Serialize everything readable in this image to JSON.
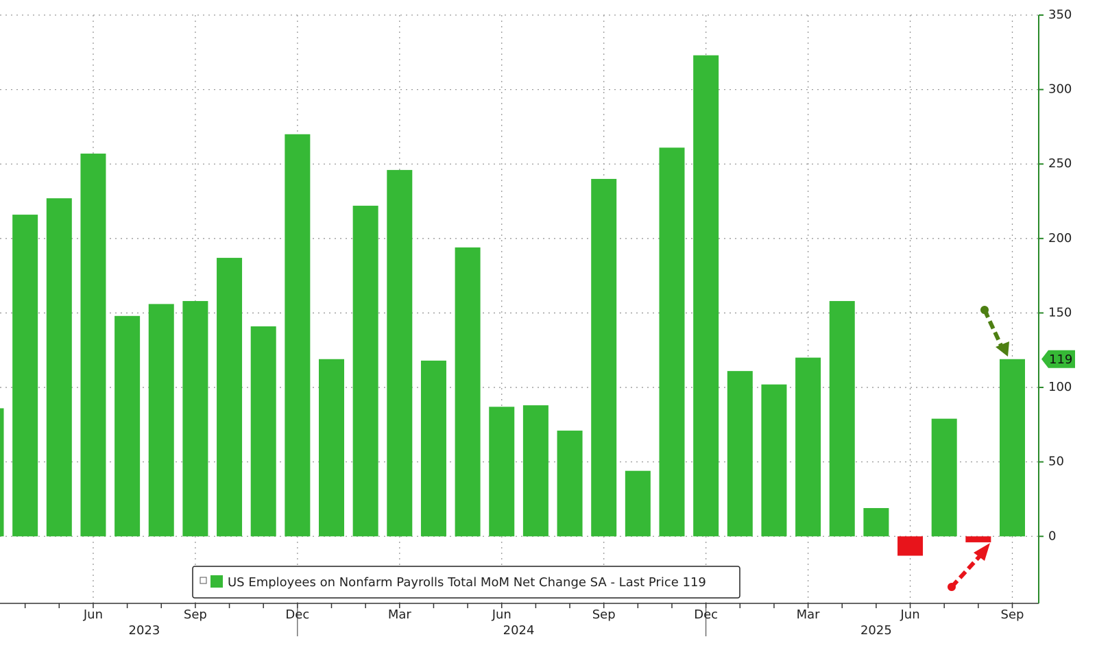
{
  "chart_data": {
    "type": "bar",
    "categories": [
      null,
      null,
      null,
      "Jun",
      null,
      null,
      "Sep",
      null,
      null,
      "Dec",
      null,
      null,
      "Mar",
      null,
      null,
      "Jun",
      null,
      null,
      "Sep",
      null,
      null,
      "Dec",
      null,
      null,
      "Mar",
      null,
      null,
      "Jun",
      null,
      null,
      "Sep"
    ],
    "years": [
      "2023",
      "2024",
      "2025"
    ],
    "series": [
      {
        "name": "US Employees on Nonfarm Payrolls Total MoM Net Change SA - Last Price 119",
        "color": "#36b936",
        "negative_color": "#e8141b",
        "values": [
          86,
          216,
          227,
          257,
          148,
          156,
          158,
          187,
          141,
          270,
          119,
          222,
          246,
          118,
          194,
          87,
          88,
          71,
          240,
          44,
          261,
          323,
          111,
          102,
          120,
          158,
          19,
          -13,
          79,
          -4,
          119
        ]
      }
    ],
    "last_price": 119,
    "ylim": [
      -45,
      350
    ],
    "yticks": [
      0,
      50,
      100,
      150,
      200,
      250,
      300,
      350
    ],
    "grid": true
  }
}
